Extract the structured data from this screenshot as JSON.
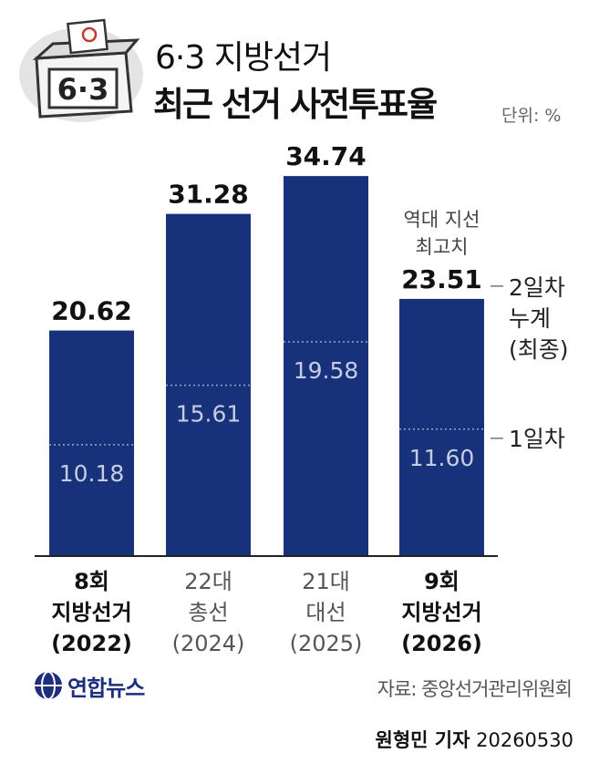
{
  "header": {
    "title_line1": "6·3 지방선거",
    "title_line2": "최근 선거 사전투표율",
    "unit": "단위: %",
    "box_label": "6·3"
  },
  "chart_data": {
    "type": "bar",
    "categories": [
      [
        "8회",
        "지방선거",
        "(2022)"
      ],
      [
        "22대",
        "총선",
        "(2024)"
      ],
      [
        "21대",
        "대선",
        "(2025)"
      ],
      [
        "9회",
        "지방선거",
        "(2026)"
      ]
    ],
    "category_bold": [
      true,
      false,
      false,
      true
    ],
    "series": [
      {
        "name": "2일차 누계 (최종)",
        "values": [
          20.62,
          31.28,
          34.74,
          23.51
        ]
      },
      {
        "name": "1일차",
        "values": [
          10.18,
          15.61,
          19.58,
          11.6
        ]
      }
    ],
    "total_labels": [
      "20.62",
      "31.28",
      "34.74",
      "23.51"
    ],
    "day1_labels": [
      "10.18",
      "15.61",
      "19.58",
      "11.60"
    ],
    "annotation": [
      "역대 지선",
      "최고치"
    ],
    "right_labels": {
      "total": [
        "2일차",
        "누계",
        "(최종)"
      ],
      "day1": "1일차"
    },
    "ylim": [
      0,
      40
    ],
    "colors": {
      "bar": "#17317a",
      "day1_line": "#9aa6c9",
      "day1_text": "#c5cde3"
    }
  },
  "footer": {
    "logo_text": "연합뉴스",
    "source": "자료: 중앙선거관리위원회",
    "reporter_name": "원형민 기자",
    "date": "20260530"
  }
}
